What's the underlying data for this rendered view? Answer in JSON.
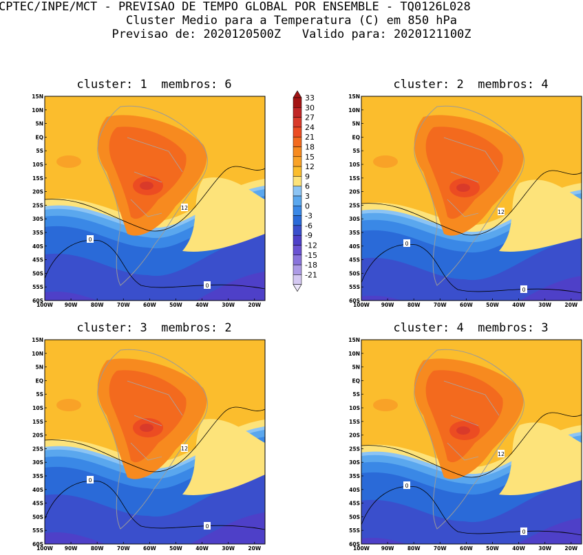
{
  "header": {
    "line1": "CPTEC/INPE/MCT - PREVISAO DE TEMPO GLOBAL POR ENSEMBLE - TQ0126L028",
    "line2": "Cluster Medio para a Temperatura (C) em 850 hPa",
    "forecast_label": "Previsao de:",
    "forecast_date": "2020120500Z",
    "valid_label": "Valido para:",
    "valid_date": "2020121100Z"
  },
  "lat_labels": [
    "15N",
    "10N",
    "5N",
    "EQ",
    "5S",
    "10S",
    "15S",
    "20S",
    "25S",
    "30S",
    "35S",
    "40S",
    "45S",
    "50S",
    "55S",
    "60S"
  ],
  "lon_labels": [
    "100W",
    "90W",
    "80W",
    "70W",
    "60W",
    "50W",
    "40W",
    "30W",
    "20W"
  ],
  "panels": [
    {
      "cluster_label": "cluster:",
      "cluster": "1",
      "membros_label": "membros:",
      "membros": "6",
      "contour_labels": [
        {
          "id": "c0a",
          "text": "0"
        },
        {
          "id": "c12",
          "text": "12"
        },
        {
          "id": "c0b",
          "text": "0"
        }
      ]
    },
    {
      "cluster_label": "cluster:",
      "cluster": "2",
      "membros_label": "membros:",
      "membros": "4",
      "contour_labels": [
        {
          "id": "c0a",
          "text": "0"
        },
        {
          "id": "c12",
          "text": "12"
        },
        {
          "id": "c0b",
          "text": "0"
        }
      ]
    },
    {
      "cluster_label": "cluster:",
      "cluster": "3",
      "membros_label": "membros:",
      "membros": "2",
      "contour_labels": [
        {
          "id": "c0a",
          "text": "0"
        },
        {
          "id": "c12",
          "text": "12"
        },
        {
          "id": "c0b",
          "text": "0"
        }
      ]
    },
    {
      "cluster_label": "cluster:",
      "cluster": "4",
      "membros_label": "membros:",
      "membros": "3",
      "contour_labels": [
        {
          "id": "c0a",
          "text": "0"
        },
        {
          "id": "c12",
          "text": "12"
        },
        {
          "id": "c0b",
          "text": "0"
        }
      ]
    }
  ],
  "colorbar": {
    "levels": [
      "33",
      "30",
      "27",
      "24",
      "21",
      "18",
      "15",
      "12",
      "9",
      "6",
      "3",
      "0",
      "-3",
      "-6",
      "-9",
      "-12",
      "-15",
      "-18",
      "-21"
    ],
    "colors": [
      "#a31414",
      "#c02626",
      "#d93a2a",
      "#ec4c22",
      "#f36a1e",
      "#f78a1f",
      "#f9a227",
      "#fbbd2d",
      "#fde37a",
      "#8cc4f4",
      "#5aa7ee",
      "#3a88e6",
      "#2a6ad8",
      "#3a4fcc",
      "#4e40c8",
      "#6a52d2",
      "#8a74dc",
      "#ad9be6",
      "#d4c8f2",
      "#ece6fa"
    ],
    "min_color": "#ece6fa",
    "max_color": "#a31414"
  }
}
